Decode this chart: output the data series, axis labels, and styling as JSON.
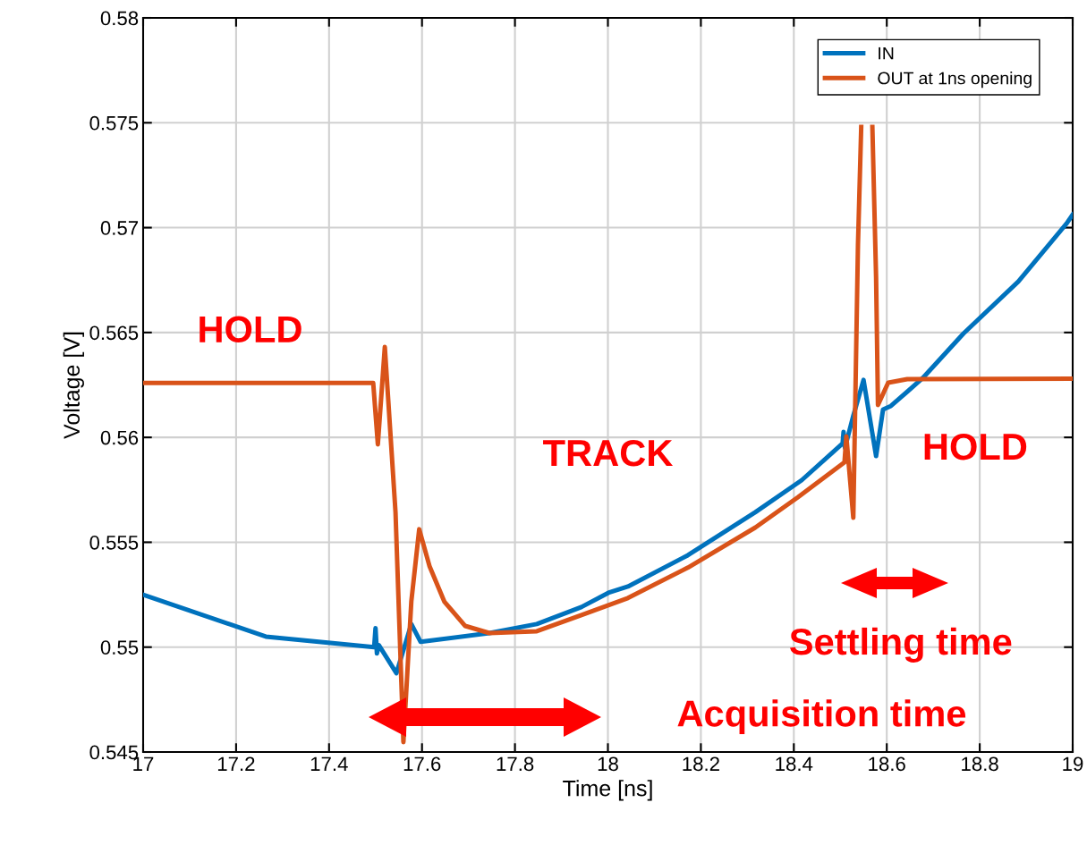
{
  "chart_data": {
    "type": "line",
    "xlabel": "Time [ns]",
    "ylabel": "Voltage [V]",
    "xlim": [
      17,
      19
    ],
    "xticks": [
      17,
      17.2,
      17.4,
      17.6,
      17.8,
      18,
      18.2,
      18.4,
      18.6,
      18.8,
      19
    ],
    "ylim": [
      0.545,
      0.58
    ],
    "yticks": [
      0.545,
      0.55,
      0.555,
      0.56,
      0.565,
      0.57,
      0.575,
      0.58
    ],
    "grid": true,
    "legend": "top right",
    "line_style": "solid",
    "marker": "none",
    "series": [
      {
        "name": "IN",
        "color": "#0072bd",
        "x": [
          17.0,
          17.264,
          17.497,
          17.5,
          17.503,
          17.507,
          17.545,
          17.577,
          17.597,
          17.745,
          17.847,
          17.943,
          18.001,
          18.043,
          18.172,
          18.317,
          18.417,
          18.505,
          18.507,
          18.51,
          18.528,
          18.55,
          18.577,
          18.592,
          18.609,
          18.677,
          18.765,
          18.883,
          18.987,
          19.0
        ],
        "values": [
          0.5525,
          0.5505,
          0.55,
          0.5509,
          0.5497,
          0.5501,
          0.54876,
          0.5511,
          0.55025,
          0.55067,
          0.5511,
          0.55191,
          0.55259,
          0.55289,
          0.55438,
          0.55643,
          0.55796,
          0.55971,
          0.56026,
          0.5595,
          0.56103,
          0.56274,
          0.55911,
          0.56133,
          0.5615,
          0.56282,
          0.56495,
          0.56743,
          0.5702,
          0.57062
        ]
      },
      {
        "name": "OUT at 1ns opening",
        "color": "#d95319",
        "x": [
          17.0,
          17.495,
          17.505,
          17.52,
          17.543,
          17.56,
          17.577,
          17.594,
          17.616,
          17.648,
          17.693,
          17.745,
          17.808,
          17.847,
          17.943,
          18.043,
          18.172,
          18.317,
          18.409,
          18.509,
          18.513,
          18.528,
          18.538,
          18.545,
          18.555,
          18.569,
          18.577,
          18.581,
          18.603,
          18.644,
          19.0
        ],
        "values": [
          0.5626,
          0.5626,
          0.55967,
          0.56431,
          0.55643,
          0.54547,
          0.55217,
          0.55562,
          0.55387,
          0.55217,
          0.55101,
          0.55067,
          0.55072,
          0.55076,
          0.55153,
          0.55234,
          0.55379,
          0.5557,
          0.55715,
          0.55881,
          0.56005,
          0.55617,
          0.56917,
          0.5748,
          null,
          0.5748,
          0.56764,
          0.56154,
          0.56261,
          0.56278,
          0.5628
        ]
      }
    ],
    "annotations": [
      "HOLD",
      "TRACK",
      "HOLD",
      "Settling time",
      "Acquisition time"
    ]
  }
}
